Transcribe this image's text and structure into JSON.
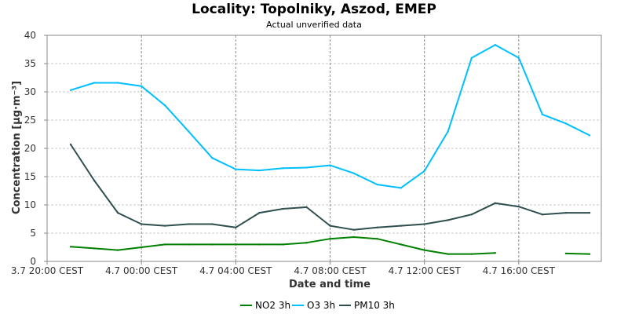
{
  "chart_data": {
    "type": "line",
    "title": "Locality: Topolniky, Aszod, EMEP",
    "subtitle": "Actual unverified data",
    "xlabel": "Date and time",
    "ylabel": "Concentration [µg·m⁻³]",
    "ylim": [
      0,
      40
    ],
    "yticks": [
      0,
      5,
      10,
      15,
      20,
      25,
      30,
      35,
      40
    ],
    "x_range_hours": [
      0,
      23.5
    ],
    "x_ticks": [
      {
        "hour": 0,
        "label": "3.7 20:00 CEST"
      },
      {
        "hour": 4,
        "label": "4.7 00:00 CEST"
      },
      {
        "hour": 8,
        "label": "4.7 04:00 CEST"
      },
      {
        "hour": 12,
        "label": "4.7 08:00 CEST"
      },
      {
        "hour": 16,
        "label": "4.7 12:00 CEST"
      },
      {
        "hour": 20,
        "label": "4.7 16:00 CEST"
      }
    ],
    "grid": true,
    "legend_position": "bottom",
    "series": [
      {
        "name": "NO2 3h",
        "color": "#008000",
        "x": [
          1,
          2,
          3,
          4,
          5,
          6,
          7,
          8,
          9,
          10,
          11,
          12,
          13,
          14,
          15,
          16,
          17,
          18,
          19,
          20,
          21,
          22,
          23
        ],
        "values": [
          2.6,
          2.3,
          2.0,
          2.5,
          3.0,
          3.0,
          3.0,
          3.0,
          3.0,
          3.0,
          3.3,
          4.0,
          4.3,
          4.0,
          3.0,
          2.0,
          1.3,
          1.3,
          1.5,
          null,
          null,
          1.4,
          1.3
        ]
      },
      {
        "name": "O3 3h",
        "color": "#00bfff",
        "x": [
          1,
          2,
          3,
          4,
          5,
          6,
          7,
          8,
          9,
          10,
          11,
          12,
          13,
          14,
          15,
          16,
          17,
          18,
          19,
          20,
          21,
          22,
          23
        ],
        "values": [
          30.3,
          31.6,
          31.6,
          31.0,
          27.6,
          23.0,
          18.3,
          16.3,
          16.1,
          16.5,
          16.6,
          17.0,
          15.6,
          13.6,
          13.0,
          16.0,
          23.0,
          36.0,
          38.3,
          36.0,
          26.0,
          24.4,
          22.3
        ]
      },
      {
        "name": "PM10 3h",
        "color": "#2f4f4f",
        "x": [
          1,
          2,
          3,
          4,
          5,
          6,
          7,
          8,
          9,
          10,
          11,
          12,
          13,
          14,
          15,
          16,
          17,
          18,
          19,
          20,
          21,
          22,
          23
        ],
        "values": [
          20.7,
          14.3,
          8.6,
          6.6,
          6.3,
          6.6,
          6.6,
          6.0,
          8.6,
          9.3,
          9.6,
          6.3,
          5.6,
          6.0,
          6.3,
          6.6,
          7.3,
          8.3,
          10.3,
          9.7,
          8.3,
          8.6,
          8.6
        ]
      }
    ]
  }
}
